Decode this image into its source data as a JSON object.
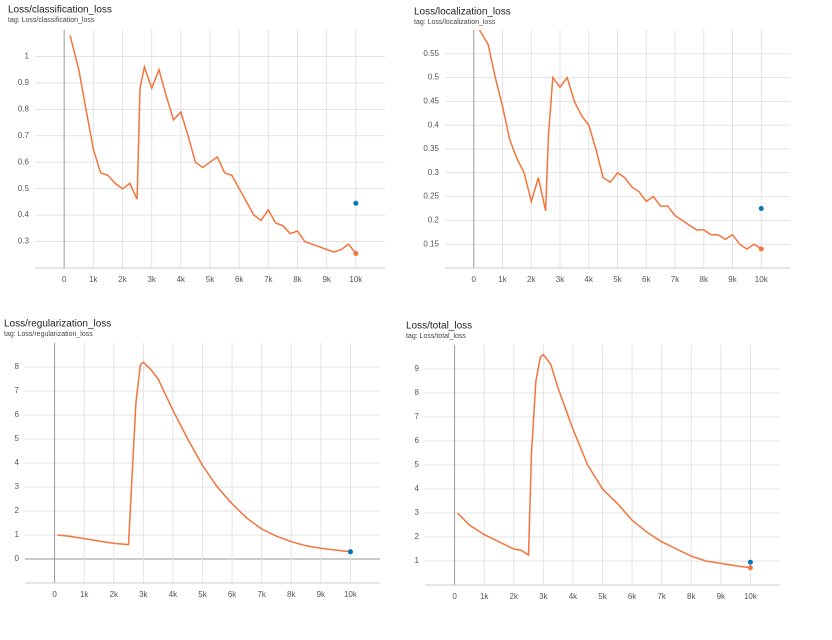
{
  "chart_data": [
    {
      "type": "line",
      "title": "Loss/classification_loss",
      "subtitle": "tag: Loss/classification_loss",
      "x": [
        200,
        500,
        750,
        1000,
        1250,
        1500,
        1750,
        2000,
        2250,
        2500,
        2600,
        2750,
        3000,
        3250,
        3500,
        3750,
        4000,
        4250,
        4500,
        4750,
        5000,
        5250,
        5500,
        5750,
        6000,
        6250,
        6500,
        6750,
        7000,
        7250,
        7500,
        7750,
        8000,
        8250,
        8500,
        8750,
        9000,
        9250,
        9500,
        9750,
        10000
      ],
      "series": [
        {
          "color": "#f4743b",
          "values": [
            1.08,
            0.95,
            0.8,
            0.65,
            0.56,
            0.55,
            0.52,
            0.5,
            0.52,
            0.46,
            0.88,
            0.96,
            0.88,
            0.95,
            0.85,
            0.76,
            0.79,
            0.7,
            0.6,
            0.58,
            0.6,
            0.62,
            0.56,
            0.55,
            0.5,
            0.45,
            0.4,
            0.38,
            0.42,
            0.37,
            0.36,
            0.33,
            0.34,
            0.3,
            0.29,
            0.28,
            0.27,
            0.26,
            0.27,
            0.29,
            0.255
          ]
        }
      ],
      "marker": {
        "color": "#0077bb",
        "x": [
          10000
        ],
        "values": [
          0.445
        ]
      },
      "xlim": [
        -1000,
        11000
      ],
      "ylim": [
        0.2,
        1.1
      ],
      "xticks": [
        0,
        {
          "value": 1000,
          "label": "1k"
        },
        {
          "value": 2000,
          "label": "2k"
        },
        {
          "value": 3000,
          "label": "3k"
        },
        {
          "value": 4000,
          "label": "4k"
        },
        {
          "value": 5000,
          "label": "5k"
        },
        {
          "value": 6000,
          "label": "6k"
        },
        {
          "value": 7000,
          "label": "7k"
        },
        {
          "value": 8000,
          "label": "8k"
        },
        {
          "value": 9000,
          "label": "9k"
        },
        {
          "value": 10000,
          "label": "10k"
        }
      ],
      "yticks": [
        0.3,
        0.4,
        0.5,
        0.6,
        0.7,
        0.8,
        0.9,
        1
      ],
      "grid": true
    },
    {
      "type": "line",
      "title": "Loss/localization_loss",
      "subtitle": "tag: Loss/localization_loss",
      "x": [
        200,
        500,
        750,
        1000,
        1250,
        1500,
        1750,
        2000,
        2250,
        2500,
        2600,
        2750,
        3000,
        3250,
        3500,
        3750,
        4000,
        4250,
        4500,
        4750,
        5000,
        5250,
        5500,
        5750,
        6000,
        6250,
        6500,
        6750,
        7000,
        7250,
        7500,
        7750,
        8000,
        8250,
        8500,
        8750,
        9000,
        9250,
        9500,
        9750,
        10000
      ],
      "series": [
        {
          "color": "#f4743b",
          "values": [
            0.6,
            0.57,
            0.5,
            0.44,
            0.37,
            0.33,
            0.3,
            0.24,
            0.29,
            0.22,
            0.38,
            0.5,
            0.48,
            0.5,
            0.45,
            0.42,
            0.4,
            0.35,
            0.29,
            0.28,
            0.3,
            0.29,
            0.27,
            0.26,
            0.24,
            0.25,
            0.23,
            0.23,
            0.21,
            0.2,
            0.19,
            0.18,
            0.18,
            0.17,
            0.17,
            0.16,
            0.17,
            0.15,
            0.14,
            0.15,
            0.14
          ]
        }
      ],
      "marker": {
        "color": "#0077bb",
        "x": [
          10000
        ],
        "values": [
          0.225
        ]
      },
      "xlim": [
        -1000,
        11000
      ],
      "ylim": [
        0.1,
        0.6
      ],
      "xticks": [
        0,
        {
          "value": 1000,
          "label": "1k"
        },
        {
          "value": 2000,
          "label": "2k"
        },
        {
          "value": 3000,
          "label": "3k"
        },
        {
          "value": 4000,
          "label": "4k"
        },
        {
          "value": 5000,
          "label": "5k"
        },
        {
          "value": 6000,
          "label": "6k"
        },
        {
          "value": 7000,
          "label": "7k"
        },
        {
          "value": 8000,
          "label": "8k"
        },
        {
          "value": 9000,
          "label": "9k"
        },
        {
          "value": 10000,
          "label": "10k"
        }
      ],
      "yticks": [
        0.15,
        0.2,
        0.25,
        0.3,
        0.35,
        0.4,
        0.45,
        0.5,
        0.55
      ],
      "grid": true
    },
    {
      "type": "line",
      "title": "Loss/regularization_loss",
      "subtitle": "tag: Loss/regularization_loss",
      "x": [
        100,
        500,
        1000,
        1500,
        2000,
        2500,
        2600,
        2750,
        2900,
        3000,
        3250,
        3500,
        4000,
        4500,
        5000,
        5500,
        6000,
        6500,
        7000,
        7500,
        8000,
        8500,
        9000,
        9500,
        10000
      ],
      "series": [
        {
          "color": "#f4743b",
          "values": [
            1.0,
            0.95,
            0.85,
            0.75,
            0.65,
            0.6,
            3.0,
            6.5,
            8.1,
            8.2,
            7.9,
            7.5,
            6.2,
            5.0,
            3.9,
            3.0,
            2.3,
            1.7,
            1.25,
            0.95,
            0.72,
            0.55,
            0.45,
            0.37,
            0.3
          ]
        }
      ],
      "marker": {
        "color": "#0077bb",
        "x": [
          10000
        ],
        "values": [
          0.3
        ]
      },
      "xlim": [
        -1000,
        11000
      ],
      "ylim": [
        -1,
        9
      ],
      "xticks": [
        0,
        {
          "value": 1000,
          "label": "1k"
        },
        {
          "value": 2000,
          "label": "2k"
        },
        {
          "value": 3000,
          "label": "3k"
        },
        {
          "value": 4000,
          "label": "4k"
        },
        {
          "value": 5000,
          "label": "5k"
        },
        {
          "value": 6000,
          "label": "6k"
        },
        {
          "value": 7000,
          "label": "7k"
        },
        {
          "value": 8000,
          "label": "8k"
        },
        {
          "value": 9000,
          "label": "9k"
        },
        {
          "value": 10000,
          "label": "10k"
        }
      ],
      "yticks": [
        0,
        1,
        2,
        3,
        4,
        5,
        6,
        7,
        8
      ],
      "grid": true
    },
    {
      "type": "line",
      "title": "Loss/total_loss",
      "subtitle": "tag: Loss/total_loss",
      "x": [
        100,
        500,
        1000,
        1500,
        2000,
        2250,
        2500,
        2600,
        2750,
        2900,
        3000,
        3250,
        3500,
        4000,
        4500,
        5000,
        5500,
        6000,
        6500,
        7000,
        7500,
        8000,
        8500,
        9000,
        9500,
        10000
      ],
      "series": [
        {
          "color": "#f4743b",
          "values": [
            3.0,
            2.5,
            2.1,
            1.8,
            1.5,
            1.45,
            1.25,
            5.5,
            8.5,
            9.5,
            9.6,
            9.2,
            8.2,
            6.5,
            5.0,
            4.0,
            3.4,
            2.7,
            2.2,
            1.8,
            1.5,
            1.2,
            1.0,
            0.9,
            0.8,
            0.72
          ]
        }
      ],
      "marker": {
        "color": "#0077bb",
        "x": [
          10000
        ],
        "values": [
          0.95
        ]
      },
      "xlim": [
        -1000,
        11000
      ],
      "ylim": [
        0,
        10
      ],
      "xticks": [
        0,
        {
          "value": 1000,
          "label": "1k"
        },
        {
          "value": 2000,
          "label": "2k"
        },
        {
          "value": 3000,
          "label": "3k"
        },
        {
          "value": 4000,
          "label": "4k"
        },
        {
          "value": 5000,
          "label": "5k"
        },
        {
          "value": 6000,
          "label": "6k"
        },
        {
          "value": 7000,
          "label": "7k"
        },
        {
          "value": 8000,
          "label": "8k"
        },
        {
          "value": 9000,
          "label": "9k"
        },
        {
          "value": 10000,
          "label": "10k"
        }
      ],
      "yticks": [
        1,
        2,
        3,
        4,
        5,
        6,
        7,
        8,
        9
      ],
      "grid": true
    }
  ]
}
